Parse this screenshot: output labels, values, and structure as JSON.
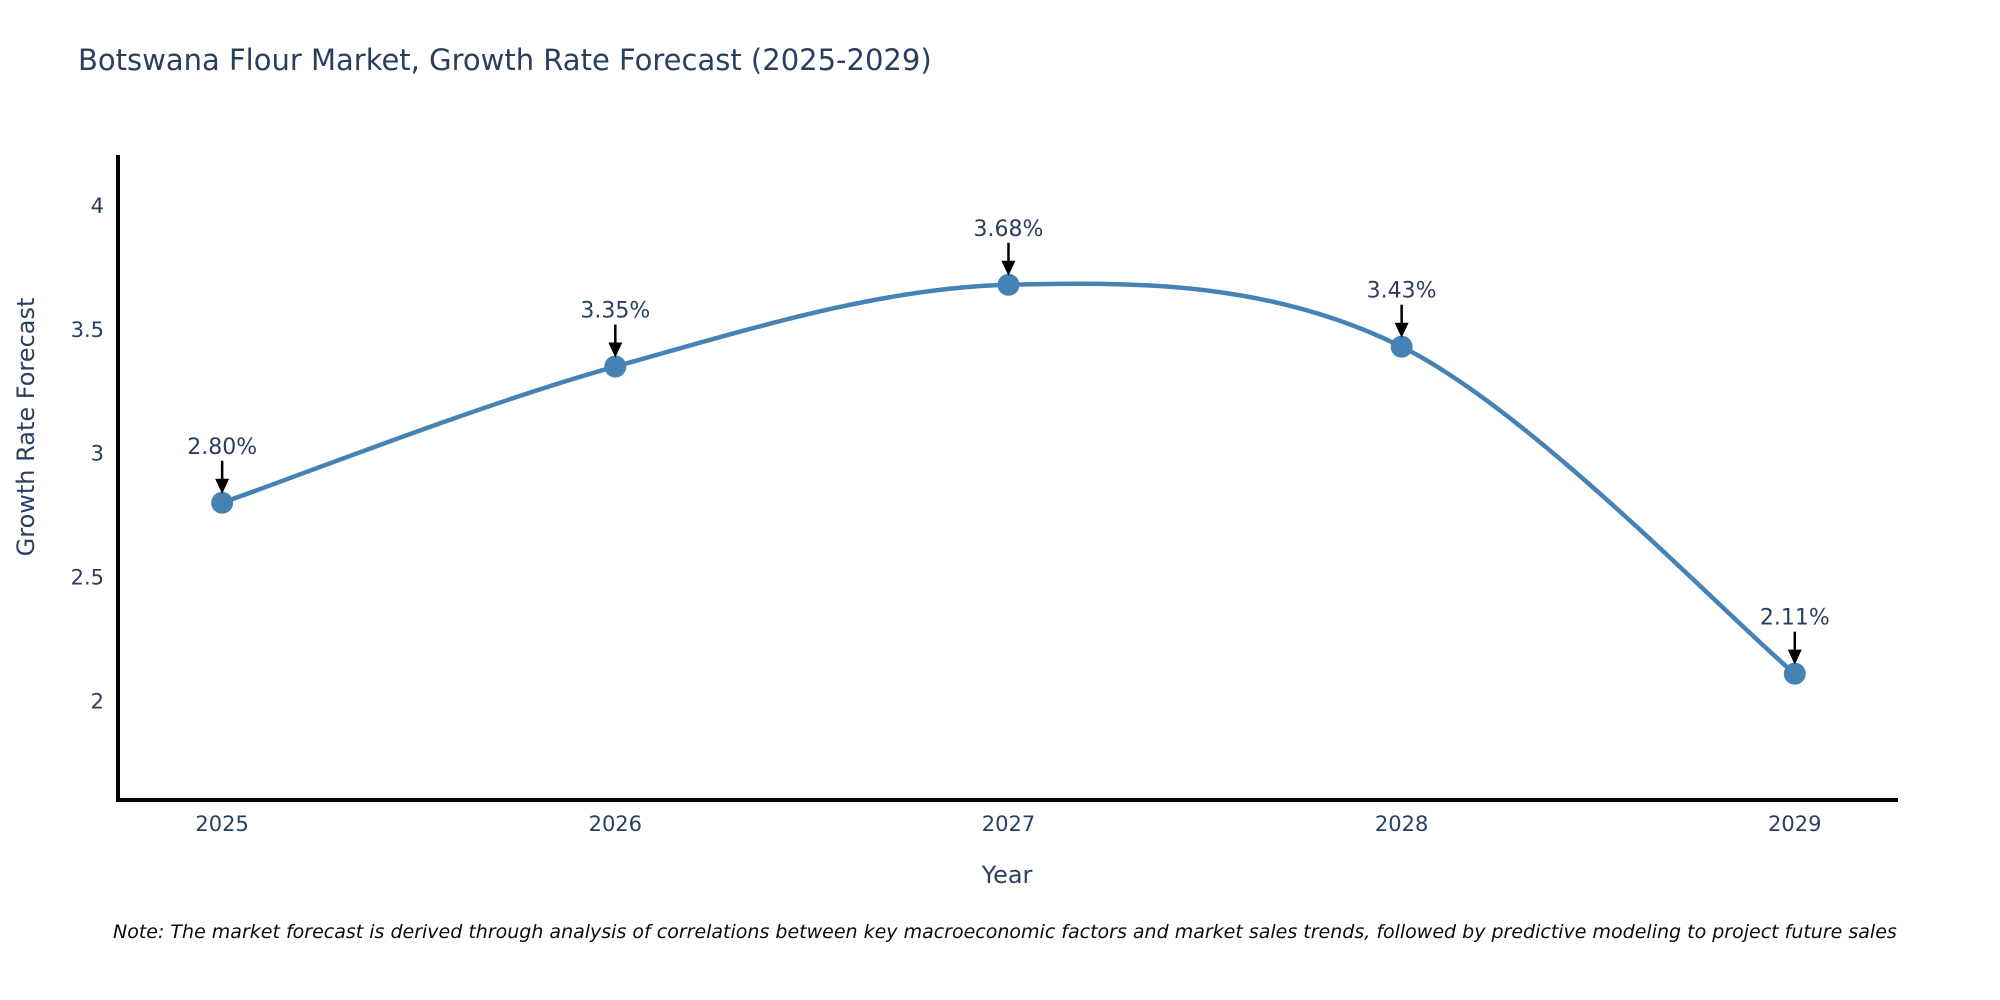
{
  "note": "Note: The market forecast is derived through analysis of correlations between key macroeconomic factors and market sales trends, followed by predictive modeling to project future sales",
  "colors": {
    "text": "#2a3f5f",
    "axis": "#000000",
    "arrow": "#000000",
    "background": "#ffffff",
    "note_text": "#0a0a0a"
  },
  "chart_data": {
    "type": "line",
    "title": "Botswana Flour Market, Growth Rate Forecast (2025-2029)",
    "xlabel": "Year",
    "ylabel": "Growth Rate Forecast",
    "x": [
      2025,
      2026,
      2027,
      2028,
      2029
    ],
    "y": [
      2.8,
      3.35,
      3.68,
      3.43,
      2.11
    ],
    "point_labels": [
      "2.80%",
      "3.35%",
      "3.68%",
      "3.43%",
      "2.11%"
    ],
    "xticks": [
      "2025",
      "2026",
      "2027",
      "2028",
      "2029"
    ],
    "yticks": [
      2,
      2.5,
      3,
      3.5,
      4
    ],
    "ytick_labels": [
      "2",
      "2.5",
      "3",
      "3.5",
      "4"
    ],
    "xlim": [
      2024.73,
      2029.26
    ],
    "ylim": [
      1.6,
      4.2
    ],
    "line_color": "#4682b4",
    "marker_color": "#4682b4",
    "line_shape": "spline",
    "grid": false,
    "legend_position": "none"
  }
}
